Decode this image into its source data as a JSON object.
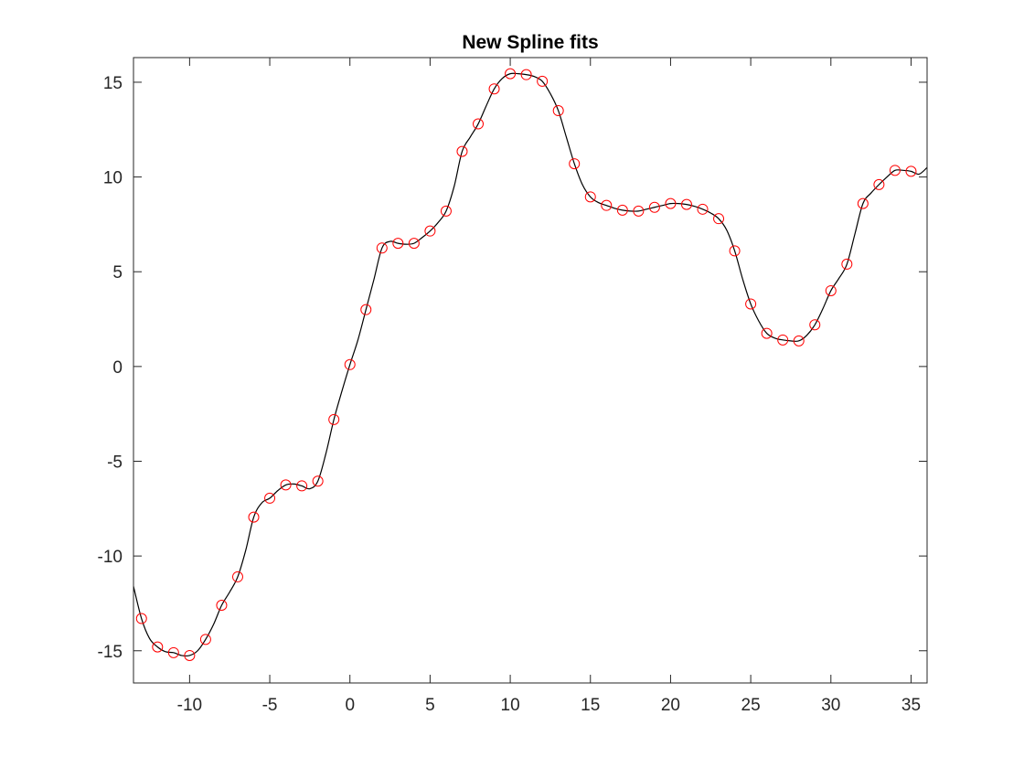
{
  "chart_data": {
    "type": "scatter",
    "title": "New Spline fits",
    "xlabel": "",
    "ylabel": "",
    "xlim": [
      -13.5,
      36
    ],
    "ylim": [
      -16.7,
      16.3
    ],
    "xticks": [
      -10,
      -5,
      0,
      5,
      10,
      15,
      20,
      25,
      30,
      35
    ],
    "yticks": [
      15,
      10,
      5,
      0,
      -5,
      -10,
      -15
    ],
    "x_tick_labels": [
      "-10",
      "-5",
      "0",
      "5",
      "10",
      "15",
      "20",
      "25",
      "30",
      "35"
    ],
    "y_tick_labels": [
      "15",
      "10",
      "5",
      "0",
      "-5",
      "-10",
      "-15"
    ],
    "grid": false,
    "legend": "none",
    "colors": {
      "points": "#ff0000",
      "curve": "#000000",
      "axes": "#262626"
    },
    "series": [
      {
        "style": "markers-circle",
        "x": [
          -13,
          -12,
          -11,
          -10,
          -9,
          -8,
          -7,
          -6,
          -5,
          -4,
          -3,
          -2,
          -1,
          0,
          1,
          2,
          3,
          4,
          5,
          6,
          7,
          8,
          9,
          10,
          11,
          12,
          13,
          14,
          15,
          16,
          17,
          18,
          19,
          20,
          21,
          22,
          23,
          24,
          25,
          26,
          27,
          28,
          29,
          30,
          31,
          32,
          33,
          34,
          35
        ],
        "y": [
          -13.3,
          -14.8,
          -15.1,
          -15.25,
          -14.4,
          -12.6,
          -11.1,
          -7.95,
          -6.95,
          -6.25,
          -6.3,
          -6.05,
          -2.8,
          0.1,
          3.0,
          6.25,
          6.5,
          6.5,
          7.15,
          8.2,
          11.35,
          12.8,
          14.65,
          15.45,
          15.4,
          15.05,
          13.5,
          10.7,
          8.95,
          8.5,
          8.25,
          8.2,
          8.4,
          8.6,
          8.55,
          8.3,
          7.8,
          6.1,
          3.3,
          1.75,
          1.4,
          1.35,
          2.2,
          4.0,
          5.4,
          8.6,
          9.6,
          10.35,
          10.3
        ]
      },
      {
        "style": "line",
        "x": [
          -13.5,
          -13,
          -12.5,
          -12,
          -11.5,
          -11,
          -10.5,
          -10,
          -9.5,
          -9,
          -8.5,
          -8,
          -7.5,
          -7,
          -6.5,
          -6,
          -5.5,
          -5,
          -4.5,
          -4,
          -3.5,
          -3,
          -2.5,
          -2,
          -1.5,
          -1,
          -0.5,
          0,
          0.5,
          1,
          1.5,
          2,
          2.5,
          3,
          3.5,
          4,
          4.5,
          5,
          5.5,
          6,
          6.5,
          7,
          7.5,
          8,
          8.5,
          9,
          9.5,
          10,
          10.5,
          11,
          11.5,
          12,
          12.5,
          13,
          13.5,
          14,
          14.5,
          15,
          15.5,
          16,
          16.5,
          17,
          17.5,
          18,
          18.5,
          19,
          19.5,
          20,
          20.5,
          21,
          21.5,
          22,
          22.5,
          23,
          23.5,
          24,
          24.5,
          25,
          25.5,
          26,
          26.5,
          27,
          27.5,
          28,
          28.5,
          29,
          29.5,
          30,
          30.5,
          31,
          31.5,
          32,
          32.5,
          33,
          33.5,
          34,
          34.5,
          35,
          35.5,
          36
        ],
        "y": [
          -11.6,
          -13.3,
          -14.35,
          -14.8,
          -15.05,
          -15.1,
          -15.25,
          -15.25,
          -15.0,
          -14.4,
          -13.6,
          -12.6,
          -11.9,
          -11.1,
          -9.7,
          -7.95,
          -7.2,
          -6.95,
          -6.55,
          -6.25,
          -6.2,
          -6.3,
          -6.45,
          -6.05,
          -4.6,
          -2.8,
          -1.3,
          0.1,
          1.4,
          3.0,
          4.6,
          6.25,
          6.6,
          6.5,
          6.45,
          6.5,
          6.8,
          7.15,
          7.6,
          8.2,
          9.5,
          11.35,
          12.1,
          12.8,
          13.75,
          14.65,
          15.2,
          15.45,
          15.45,
          15.4,
          15.3,
          15.05,
          14.4,
          13.5,
          12.1,
          10.7,
          9.6,
          8.95,
          8.65,
          8.5,
          8.35,
          8.25,
          8.2,
          8.2,
          8.3,
          8.4,
          8.5,
          8.6,
          8.6,
          8.55,
          8.45,
          8.3,
          8.1,
          7.8,
          7.2,
          6.1,
          4.6,
          3.3,
          2.4,
          1.75,
          1.5,
          1.4,
          1.35,
          1.35,
          1.65,
          2.2,
          3.05,
          4.0,
          4.65,
          5.4,
          7.0,
          8.6,
          9.15,
          9.6,
          10.0,
          10.35,
          10.35,
          10.3,
          10.15,
          10.5
        ]
      }
    ]
  }
}
